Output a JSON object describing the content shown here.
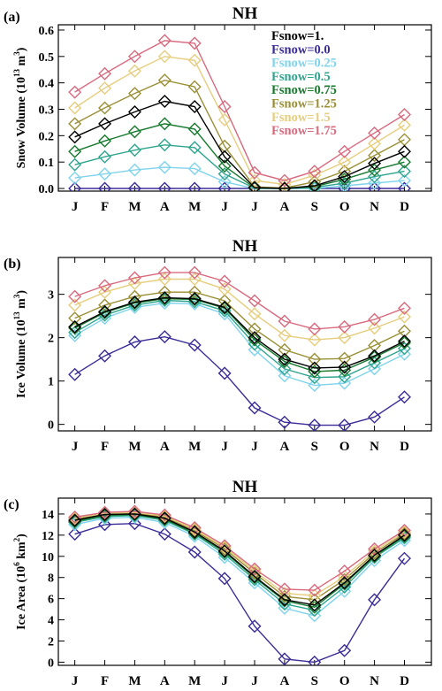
{
  "chart_data": [
    {
      "type": "line",
      "panel_label": "(a)",
      "title": "NH",
      "ylabel_main": "Snow Volume (10",
      "ylabel_exp": "13",
      "ylabel_tail": " m",
      "ylabel_exp2": "3",
      "ylabel_close": ")",
      "categories": [
        "J",
        "F",
        "M",
        "A",
        "M",
        "J",
        "J",
        "A",
        "S",
        "O",
        "N",
        "D"
      ],
      "ylim": [
        -0.01,
        0.62
      ],
      "yticks": [
        0,
        0.1,
        0.2,
        0.3,
        0.4,
        0.5,
        0.6
      ],
      "ytick_labels": [
        "0.0",
        "0.1",
        "0.2",
        "0.3",
        "0.4",
        "0.5",
        "0.6"
      ],
      "legend": "top-right",
      "series": [
        {
          "name": "Fsnow=1.",
          "color": "#000000",
          "values": [
            0.195,
            0.245,
            0.29,
            0.33,
            0.31,
            0.12,
            0.003,
            0.0,
            0.01,
            0.045,
            0.095,
            0.14
          ]
        },
        {
          "name": "Fsnow=0.0",
          "color": "#3a2c97",
          "values": [
            0,
            0,
            0,
            0,
            0,
            0,
            0,
            0,
            0,
            0,
            0,
            0
          ]
        },
        {
          "name": "Fsnow=0.25",
          "color": "#7fd3ec",
          "values": [
            0.04,
            0.055,
            0.07,
            0.08,
            0.075,
            0.025,
            0.0,
            0.0,
            0.0,
            0.01,
            0.02,
            0.03
          ]
        },
        {
          "name": "Fsnow=0.5",
          "color": "#2fa58e",
          "values": [
            0.09,
            0.12,
            0.145,
            0.165,
            0.155,
            0.055,
            0.001,
            0.0,
            0.004,
            0.02,
            0.045,
            0.065
          ]
        },
        {
          "name": "Fsnow=0.75",
          "color": "#177a2e",
          "values": [
            0.14,
            0.18,
            0.215,
            0.245,
            0.225,
            0.085,
            0.002,
            0.0,
            0.007,
            0.035,
            0.07,
            0.1
          ]
        },
        {
          "name": "Fsnow=1.25",
          "color": "#9a8f35",
          "values": [
            0.245,
            0.305,
            0.36,
            0.41,
            0.385,
            0.16,
            0.006,
            0.002,
            0.025,
            0.065,
            0.125,
            0.185
          ]
        },
        {
          "name": "Fsnow=1.5",
          "color": "#e6cd7d",
          "values": [
            0.305,
            0.38,
            0.445,
            0.5,
            0.485,
            0.26,
            0.03,
            0.015,
            0.05,
            0.1,
            0.17,
            0.24
          ]
        },
        {
          "name": "Fsnow=1.75",
          "color": "#d86a7e",
          "values": [
            0.365,
            0.435,
            0.5,
            0.56,
            0.55,
            0.31,
            0.06,
            0.03,
            0.065,
            0.14,
            0.21,
            0.28
          ]
        }
      ]
    },
    {
      "type": "line",
      "panel_label": "(b)",
      "title": "NH",
      "ylabel_main": "Ice Volume (10",
      "ylabel_exp": "13",
      "ylabel_tail": " m",
      "ylabel_exp2": "3",
      "ylabel_close": ")",
      "categories": [
        "J",
        "F",
        "M",
        "A",
        "M",
        "J",
        "J",
        "A",
        "S",
        "O",
        "N",
        "D"
      ],
      "ylim": [
        -0.15,
        3.85
      ],
      "yticks": [
        0,
        1,
        2,
        3
      ],
      "ytick_labels": [
        "0",
        "1",
        "2",
        "3"
      ],
      "series": [
        {
          "name": "Fsnow=1.",
          "color": "#000000",
          "values": [
            2.25,
            2.6,
            2.82,
            2.92,
            2.9,
            2.7,
            2.0,
            1.5,
            1.3,
            1.32,
            1.58,
            1.92
          ]
        },
        {
          "name": "Fsnow=0.0",
          "color": "#3a2c97",
          "values": [
            1.15,
            1.58,
            1.9,
            2.02,
            1.83,
            1.18,
            0.38,
            0.05,
            -0.02,
            -0.02,
            0.17,
            0.63
          ]
        },
        {
          "name": "Fsnow=0.25",
          "color": "#7fd3ec",
          "values": [
            2.05,
            2.45,
            2.7,
            2.8,
            2.78,
            2.55,
            1.72,
            1.12,
            0.9,
            0.95,
            1.28,
            1.62
          ]
        },
        {
          "name": "Fsnow=0.5",
          "color": "#2fa58e",
          "values": [
            2.12,
            2.52,
            2.75,
            2.86,
            2.83,
            2.62,
            1.85,
            1.28,
            1.08,
            1.1,
            1.42,
            1.75
          ]
        },
        {
          "name": "Fsnow=0.75",
          "color": "#177a2e",
          "values": [
            2.22,
            2.58,
            2.8,
            2.9,
            2.88,
            2.68,
            1.95,
            1.45,
            1.22,
            1.25,
            1.55,
            1.88
          ]
        },
        {
          "name": "Fsnow=1.25",
          "color": "#9a8f35",
          "values": [
            2.45,
            2.75,
            2.95,
            3.05,
            3.05,
            2.85,
            2.2,
            1.72,
            1.5,
            1.52,
            1.82,
            2.15
          ]
        },
        {
          "name": "Fsnow=1.5",
          "color": "#e6cd7d",
          "values": [
            2.75,
            3.05,
            3.25,
            3.35,
            3.35,
            3.12,
            2.55,
            2.05,
            1.95,
            2.0,
            2.22,
            2.48
          ]
        },
        {
          "name": "Fsnow=1.75",
          "color": "#d86a7e",
          "values": [
            2.95,
            3.2,
            3.38,
            3.5,
            3.5,
            3.3,
            2.85,
            2.38,
            2.2,
            2.25,
            2.42,
            2.68
          ]
        }
      ]
    },
    {
      "type": "line",
      "panel_label": "(c)",
      "title": "NH",
      "ylabel_main": "Ice Area (10",
      "ylabel_exp": "6",
      "ylabel_tail": " km",
      "ylabel_exp2": "2",
      "ylabel_close": ")",
      "categories": [
        "J",
        "F",
        "M",
        "A",
        "M",
        "J",
        "J",
        "A",
        "S",
        "O",
        "N",
        "D"
      ],
      "ylim": [
        -0.3,
        15.5
      ],
      "yticks": [
        0,
        2,
        4,
        6,
        8,
        10,
        12,
        14
      ],
      "ytick_labels": [
        "0",
        "2",
        "4",
        "6",
        "8",
        "10",
        "12",
        "14"
      ],
      "series": [
        {
          "name": "Fsnow=1.",
          "color": "#000000",
          "values": [
            13.4,
            13.95,
            14.0,
            13.6,
            12.3,
            10.5,
            8.1,
            5.9,
            5.4,
            7.5,
            10.1,
            12.0
          ]
        },
        {
          "name": "Fsnow=0.0",
          "color": "#3a2c97",
          "values": [
            12.1,
            13.0,
            13.1,
            12.1,
            10.4,
            7.9,
            3.4,
            0.3,
            0.0,
            1.1,
            5.9,
            9.8
          ]
        },
        {
          "name": "Fsnow=0.25",
          "color": "#7fd3ec",
          "values": [
            13.0,
            13.6,
            13.7,
            13.2,
            11.9,
            9.9,
            7.5,
            5.1,
            4.4,
            6.7,
            9.6,
            11.5
          ]
        },
        {
          "name": "Fsnow=0.5",
          "color": "#2fa58e",
          "values": [
            13.2,
            13.75,
            13.85,
            13.4,
            12.1,
            10.2,
            7.8,
            5.5,
            4.9,
            7.1,
            9.9,
            11.75
          ]
        },
        {
          "name": "Fsnow=0.75",
          "color": "#177a2e",
          "values": [
            13.3,
            13.85,
            13.95,
            13.5,
            12.2,
            10.4,
            8.0,
            5.8,
            5.2,
            7.4,
            10.0,
            11.9
          ]
        },
        {
          "name": "Fsnow=1.25",
          "color": "#9a8f35",
          "values": [
            13.5,
            14.0,
            14.1,
            13.7,
            12.45,
            10.7,
            8.4,
            6.2,
            5.9,
            7.8,
            10.3,
            12.15
          ]
        },
        {
          "name": "Fsnow=1.5",
          "color": "#e6cd7d",
          "values": [
            13.6,
            14.05,
            14.15,
            13.8,
            12.55,
            10.85,
            8.6,
            6.5,
            6.3,
            8.1,
            10.5,
            12.3
          ]
        },
        {
          "name": "Fsnow=1.75",
          "color": "#d86a7e",
          "values": [
            13.7,
            14.15,
            14.25,
            13.9,
            12.7,
            11.0,
            8.8,
            6.9,
            6.8,
            8.6,
            10.7,
            12.45
          ]
        }
      ]
    }
  ]
}
